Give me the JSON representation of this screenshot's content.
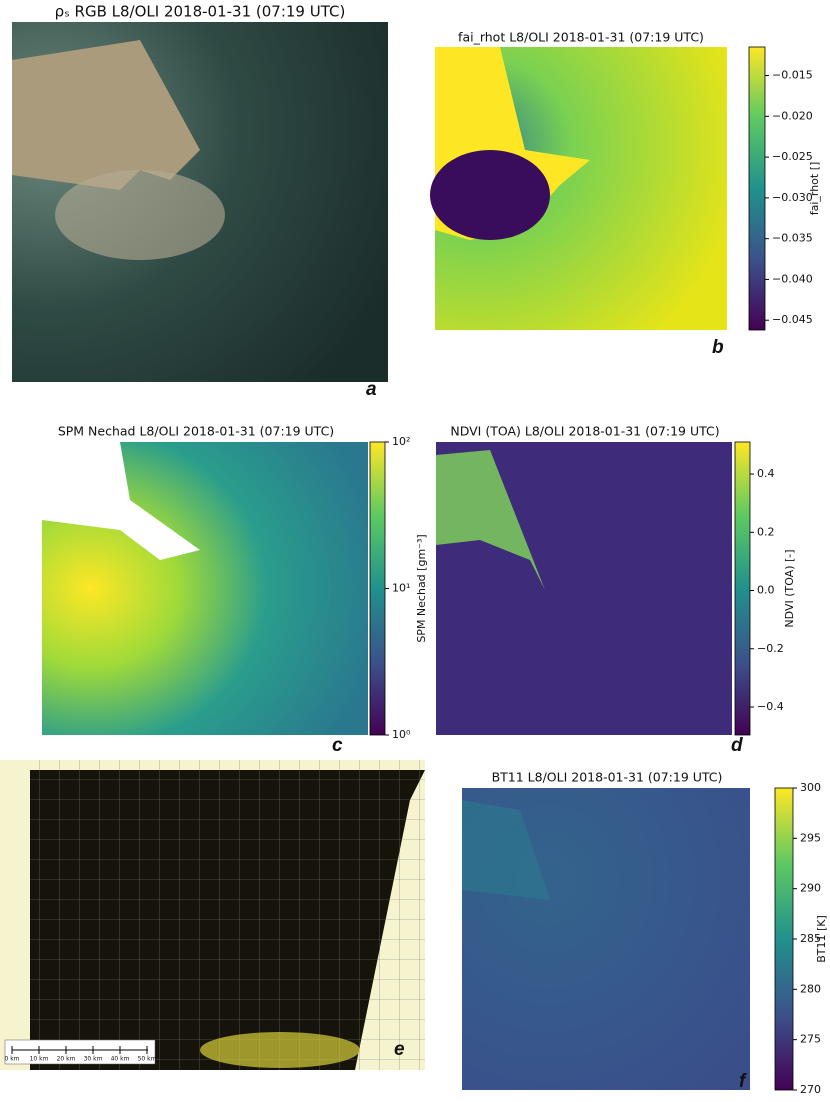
{
  "panels": [
    {
      "title": "ρₛ RGB L8/OLI 2018-01-31 (07:19 UTC)",
      "letter": "a"
    },
    {
      "title": "fai_rhot L8/OLI 2018-01-31 (07:19 UTC)",
      "letter": "b",
      "colorbar": {
        "label": "fai_rhot []",
        "lim": [
          -0.0462,
          -0.0115
        ],
        "ticks": [
          {
            "value": -0.015,
            "label": "−0.015"
          },
          {
            "value": -0.02,
            "label": "−0.020"
          },
          {
            "value": -0.025,
            "label": "−0.025"
          },
          {
            "value": -0.03,
            "label": "−0.030"
          },
          {
            "value": -0.035,
            "label": "−0.035"
          },
          {
            "value": -0.04,
            "label": "−0.040"
          },
          {
            "value": -0.045,
            "label": "−0.045"
          }
        ]
      }
    },
    {
      "title": "SPM Nechad L8/OLI 2018-01-31 (07:19 UTC)",
      "letter": "c",
      "colorbar": {
        "label": "SPM Nechad [gm⁻³]",
        "lim": [
          1,
          100
        ],
        "log": true,
        "ticks": [
          {
            "value": 1,
            "label": "10⁰"
          },
          {
            "value": 10,
            "label": "10¹"
          },
          {
            "value": 100,
            "label": "10²"
          }
        ]
      }
    },
    {
      "title": "NDVI (TOA) L8/OLI 2018-01-31 (07:19 UTC)",
      "letter": "d",
      "colorbar": {
        "label": "NDVI (TOA) [-]",
        "lim": [
          -0.496,
          0.51
        ],
        "ticks": [
          {
            "value": 0.4,
            "label": "0.4"
          },
          {
            "value": 0.2,
            "label": "0.2"
          },
          {
            "value": 0,
            "label": "0.0"
          },
          {
            "value": -0.2,
            "label": "−0.2"
          },
          {
            "value": -0.4,
            "label": "−0.4"
          }
        ]
      }
    },
    {
      "letter": "e",
      "scale_labels": [
        "0 km",
        "10 km",
        "20 km",
        "30 km",
        "40 km",
        "50 km"
      ]
    },
    {
      "title": "BT11 L8/OLI 2018-01-31 (07:19 UTC)",
      "letter": "f",
      "colorbar": {
        "label": "BT11 [K]",
        "lim": [
          270,
          300
        ],
        "ticks": [
          300,
          295,
          290,
          285,
          280,
          275,
          270
        ]
      }
    }
  ]
}
